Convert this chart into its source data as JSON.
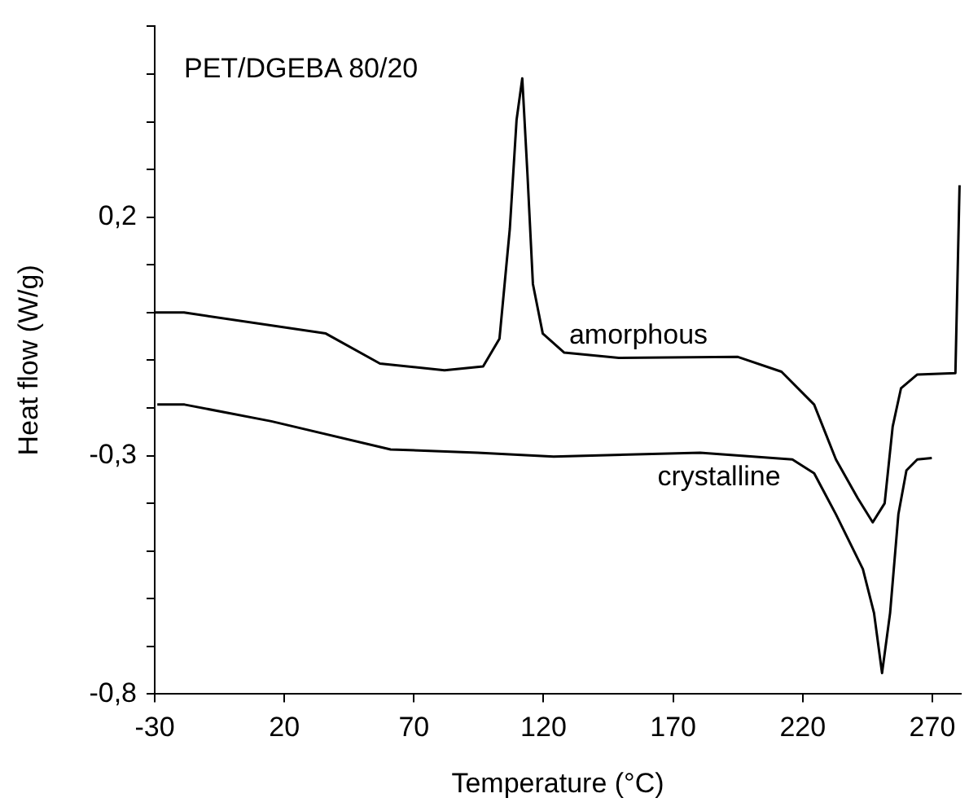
{
  "chart_data": {
    "type": "line",
    "title": "PET/DGEBA 80/20",
    "xlabel": "Temperature (°C)",
    "ylabel": "Heat flow (W/g)",
    "xlim": [
      -30,
      281
    ],
    "xticks": [
      -30,
      20,
      70,
      120,
      170,
      220,
      270
    ],
    "ylim": [
      -0.8,
      0.6
    ],
    "yticks": [
      {
        "value": -0.8,
        "label": "-0,8"
      },
      {
        "value": -0.7,
        "label": null
      },
      {
        "value": -0.6,
        "label": null
      },
      {
        "value": -0.5,
        "label": null
      },
      {
        "value": -0.4,
        "label": null
      },
      {
        "value": -0.3,
        "label": "-0,3"
      },
      {
        "value": -0.2,
        "label": null
      },
      {
        "value": -0.1,
        "label": null
      },
      {
        "value": 0,
        "label": null
      },
      {
        "value": 0.1,
        "label": null
      },
      {
        "value": 0.2,
        "label": "0,2"
      },
      {
        "value": 0.3,
        "label": null
      },
      {
        "value": 0.4,
        "label": null
      },
      {
        "value": 0.5,
        "label": null
      },
      {
        "value": 0.6,
        "label": null
      }
    ],
    "grid": false,
    "legend": false,
    "marker": "none",
    "line_style": "solid",
    "series": [
      {
        "name": "amorphous",
        "color": "#000000",
        "x": [
          -30,
          -18.7,
          36,
          56.9,
          81.8,
          96.7,
          103,
          107,
          109.6,
          111.8,
          113.8,
          115.9,
          119.7,
          128,
          149,
          195,
          211.8,
          224.4,
          232.8,
          241.2,
          247,
          251.6,
          254.7,
          257.9,
          264.2,
          278.9,
          280.5
        ],
        "values": [
          0.0,
          0.0,
          -0.044,
          -0.107,
          -0.121,
          -0.113,
          -0.055,
          0.176,
          0.404,
          0.491,
          0.29,
          0.06,
          -0.044,
          -0.084,
          -0.095,
          -0.093,
          -0.124,
          -0.193,
          -0.308,
          -0.389,
          -0.44,
          -0.4,
          -0.239,
          -0.159,
          -0.13,
          -0.127,
          0.267
        ]
      },
      {
        "name": "crystalline",
        "color": "#000000",
        "x": [
          -29,
          -18.5,
          15,
          61,
          94.6,
          123.9,
          180.4,
          216,
          224.4,
          232.8,
          243.2,
          247.5,
          250.6,
          253.7,
          256.9,
          260,
          264.2,
          269.8
        ],
        "values": [
          -0.193,
          -0.193,
          -0.228,
          -0.287,
          -0.294,
          -0.302,
          -0.294,
          -0.308,
          -0.337,
          -0.423,
          -0.538,
          -0.63,
          -0.756,
          -0.63,
          -0.423,
          -0.331,
          -0.308,
          -0.305
        ]
      }
    ]
  }
}
